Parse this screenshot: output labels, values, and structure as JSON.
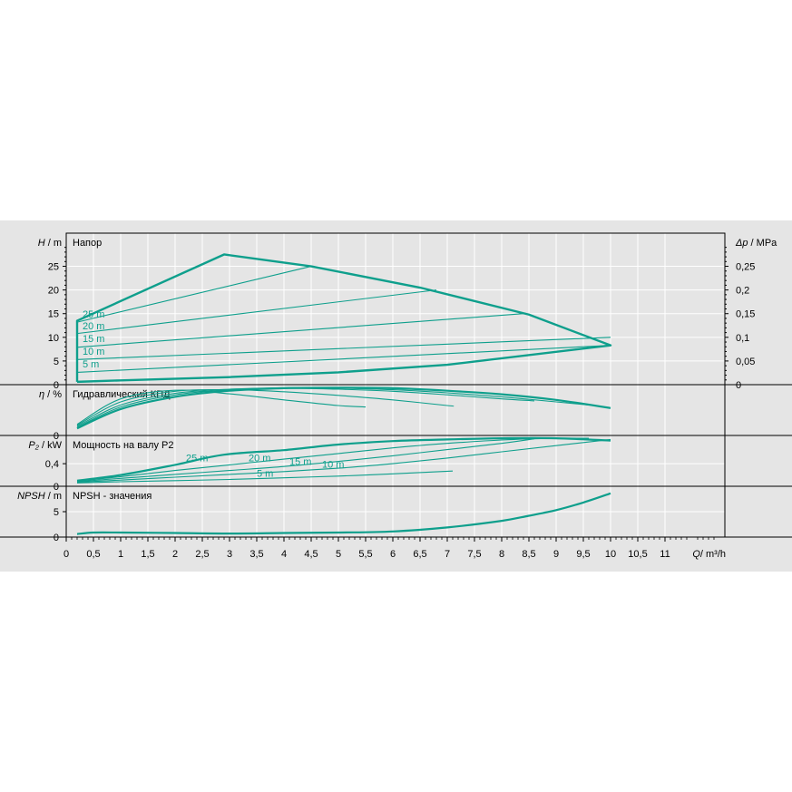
{
  "colors": {
    "curve": "#0e9f8c",
    "grid": "#ffffff",
    "background": "#e5e5e5",
    "axis": "#000000"
  },
  "x_axis": {
    "label": "Q",
    "unit": "/ m³/h",
    "ticks": [
      0,
      0.5,
      1,
      1.5,
      2,
      2.5,
      3,
      3.5,
      4,
      4.5,
      5,
      5.5,
      6,
      6.5,
      7,
      7.5,
      8,
      8.5,
      9,
      9.5,
      10,
      10.5,
      11
    ],
    "tick_labels": [
      "0",
      "0,5",
      "1",
      "1,5",
      "2",
      "2,5",
      "3",
      "3,5",
      "4",
      "4,5",
      "5",
      "5,5",
      "6",
      "6,5",
      "7",
      "7,5",
      "8",
      "8,5",
      "9",
      "9,5",
      "10",
      "10,5",
      "11"
    ],
    "range": [
      0,
      12.1
    ]
  },
  "chart_data": [
    {
      "type": "line",
      "panel": "head",
      "title": "Напор",
      "ylabel": "H",
      "yunit": " / m",
      "ylim": [
        0,
        32
      ],
      "yticks": [
        0,
        5,
        10,
        15,
        20,
        25
      ],
      "ytick_labels": [
        "0",
        "5",
        "10",
        "15",
        "20",
        "25"
      ],
      "y2label": "Δp",
      "y2unit": " / MPa",
      "y2ticks": [
        0,
        0.05,
        0.1,
        0.15,
        0.2,
        0.25
      ],
      "y2tick_labels": [
        "0",
        "0,05",
        "0,1",
        "0,15",
        "0,2",
        "0,25"
      ],
      "envelope": {
        "x": [
          0.2,
          0.2,
          2.9,
          4.5,
          6.5,
          8.5,
          10,
          7,
          5,
          3,
          1,
          0.2
        ],
        "y": [
          0.6,
          13.5,
          27.5,
          25,
          20.5,
          14.8,
          8.3,
          4.2,
          2.6,
          1.6,
          0.9,
          0.6
        ]
      },
      "series": [
        {
          "name": "25 m",
          "x": [
            0.2,
            4.5
          ],
          "y": [
            13.2,
            25
          ]
        },
        {
          "name": "20 m",
          "x": [
            0.2,
            6.8
          ],
          "y": [
            10.8,
            20
          ]
        },
        {
          "name": "15 m",
          "x": [
            0.2,
            8.4
          ],
          "y": [
            7.9,
            15
          ]
        },
        {
          "name": "10 m",
          "x": [
            0.2,
            10
          ],
          "y": [
            5.3,
            10
          ]
        },
        {
          "name": "5 m",
          "x": [
            0.2,
            10
          ],
          "y": [
            2.6,
            8.3
          ]
        }
      ],
      "series_labels": [
        {
          "text": "25 m",
          "x": 0.3,
          "y": 14.2
        },
        {
          "text": "20 m",
          "x": 0.3,
          "y": 11.7
        },
        {
          "text": "15 m",
          "x": 0.3,
          "y": 9.0
        },
        {
          "text": "10 m",
          "x": 0.3,
          "y": 6.3
        },
        {
          "text": "5 m",
          "x": 0.3,
          "y": 3.6
        }
      ]
    },
    {
      "type": "line",
      "panel": "efficiency",
      "title": "Гидравлический КПД",
      "ylabel": "η",
      "yunit": " / %",
      "ylim": [
        0,
        10
      ],
      "yticks": [
        0
      ],
      "ytick_labels": [
        "0"
      ],
      "series": [
        {
          "name": "25 m",
          "x": [
            0.2,
            1,
            2,
            3,
            4,
            5,
            6,
            7,
            8,
            9,
            10
          ],
          "y": [
            1.4,
            5.2,
            7.6,
            8.8,
            9.3,
            9.4,
            9.3,
            8.8,
            8.1,
            7.0,
            5.4
          ]
        },
        {
          "name": "20 m",
          "x": [
            0.2,
            1,
            2,
            3,
            4,
            5,
            6,
            7,
            8,
            9,
            9.6
          ],
          "y": [
            1.6,
            5.6,
            8.0,
            9.0,
            9.4,
            9.3,
            9.0,
            8.4,
            7.6,
            6.6,
            6.0
          ]
        },
        {
          "name": "15 m",
          "x": [
            0.2,
            1,
            2,
            3,
            4,
            5,
            6,
            7,
            8,
            8.6
          ],
          "y": [
            1.8,
            6.0,
            8.3,
            9.1,
            9.3,
            9.1,
            8.7,
            8.0,
            7.2,
            6.8
          ]
        },
        {
          "name": "10 m",
          "x": [
            0.2,
            1,
            2,
            3,
            4,
            5,
            6,
            7,
            7.1
          ],
          "y": [
            2.0,
            6.6,
            8.7,
            9.0,
            8.6,
            7.9,
            7.0,
            5.9,
            5.8
          ]
        },
        {
          "name": "5 m",
          "x": [
            0.2,
            1,
            2,
            3,
            4,
            5,
            5.5
          ],
          "y": [
            2.2,
            7.2,
            8.9,
            8.2,
            7.0,
            5.9,
            5.6
          ]
        }
      ]
    },
    {
      "type": "line",
      "panel": "power",
      "title": "Мощность на валу P2",
      "ylabel": "P₂",
      "yunit": " / kW",
      "ylim": [
        0,
        0.9
      ],
      "yticks": [
        0,
        0.4
      ],
      "ytick_labels": [
        "0",
        "0,4"
      ],
      "series": [
        {
          "name": "25 m",
          "x": [
            0.2,
            1,
            2,
            2.9,
            4,
            5,
            6,
            7,
            8,
            9,
            10
          ],
          "y": [
            0.1,
            0.2,
            0.38,
            0.56,
            0.64,
            0.74,
            0.8,
            0.83,
            0.85,
            0.85,
            0.81
          ]
        },
        {
          "name": "20 m",
          "x": [
            0.2,
            1,
            2,
            3,
            4,
            5,
            6,
            7,
            8,
            9,
            9.6
          ],
          "y": [
            0.09,
            0.17,
            0.28,
            0.38,
            0.48,
            0.58,
            0.68,
            0.76,
            0.82,
            0.85,
            0.85
          ]
        },
        {
          "name": "15 m",
          "x": [
            0.2,
            1,
            2,
            3,
            4,
            5,
            6,
            7,
            8,
            8.6
          ],
          "y": [
            0.08,
            0.14,
            0.21,
            0.28,
            0.35,
            0.44,
            0.54,
            0.65,
            0.76,
            0.84
          ]
        },
        {
          "name": "10 m",
          "x": [
            0.2,
            1,
            2,
            3,
            4,
            5,
            6,
            7,
            8,
            9,
            10
          ],
          "y": [
            0.07,
            0.11,
            0.16,
            0.21,
            0.26,
            0.32,
            0.4,
            0.5,
            0.61,
            0.72,
            0.83
          ]
        },
        {
          "name": "5 m",
          "x": [
            0.2,
            1,
            2,
            3,
            4,
            5,
            6,
            7.1
          ],
          "y": [
            0.06,
            0.08,
            0.1,
            0.12,
            0.15,
            0.18,
            0.22,
            0.27
          ]
        }
      ],
      "series_labels": [
        {
          "text": "25 m",
          "x": 2.2,
          "y": 0.44
        },
        {
          "text": "20 m",
          "x": 3.35,
          "y": 0.44
        },
        {
          "text": "15 m",
          "x": 4.1,
          "y": 0.38
        },
        {
          "text": "10 m",
          "x": 4.7,
          "y": 0.33
        },
        {
          "text": "5 m",
          "x": 3.5,
          "y": 0.17
        }
      ]
    },
    {
      "type": "line",
      "panel": "npsh",
      "title": "NPSH - значения",
      "ylabel": "NPSH",
      "yunit": " / m",
      "ylim": [
        0,
        10
      ],
      "yticks": [
        0,
        5
      ],
      "ytick_labels": [
        "0",
        "5"
      ],
      "series": [
        {
          "name": "",
          "x": [
            0.2,
            0.5,
            1,
            2,
            3,
            4,
            5,
            6,
            7,
            8,
            8.5,
            9,
            9.5,
            10
          ],
          "y": [
            0.6,
            0.9,
            0.9,
            0.8,
            0.7,
            0.8,
            0.9,
            1.1,
            1.9,
            3.2,
            4.2,
            5.3,
            6.8,
            8.6
          ]
        }
      ]
    }
  ]
}
